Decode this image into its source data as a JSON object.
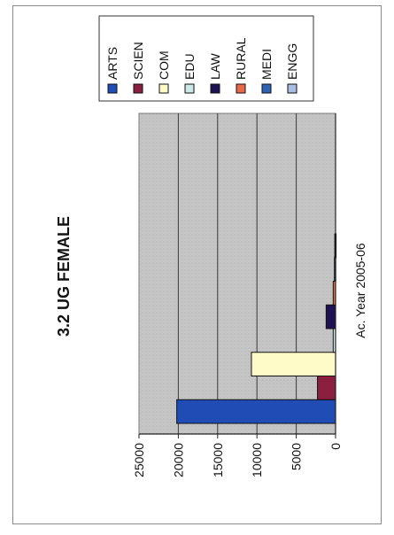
{
  "chart_data": {
    "type": "bar",
    "orientation": "rotated-90-ccw",
    "title": "3.2  UG  FEMALE",
    "xlabel": "Ac. Year 2005-06",
    "ylabel": "",
    "categories": [
      "Ac. Year 2005-06"
    ],
    "series": [
      {
        "name": "ARTS",
        "values": [
          20200
        ],
        "color": "#1f4db5"
      },
      {
        "name": "SCIEN",
        "values": [
          2300
        ],
        "color": "#8b1f3f"
      },
      {
        "name": "COM",
        "values": [
          10700
        ],
        "color": "#fffbc8"
      },
      {
        "name": "EDU",
        "values": [
          300
        ],
        "color": "#cfe8e8"
      },
      {
        "name": "LAW",
        "values": [
          1200
        ],
        "color": "#1f1253"
      },
      {
        "name": "RURAL",
        "values": [
          300
        ],
        "color": "#e66a4a"
      },
      {
        "name": "MEDI",
        "values": [
          150
        ],
        "color": "#2d62b5"
      },
      {
        "name": "ENGG",
        "values": [
          100
        ],
        "color": "#a9bde2"
      }
    ],
    "ylim": [
      0,
      25000
    ],
    "yticks": [
      0,
      5000,
      10000,
      15000,
      20000,
      25000
    ],
    "grid": true,
    "plot_background": "#c4c4c4",
    "legend_position": "top"
  }
}
